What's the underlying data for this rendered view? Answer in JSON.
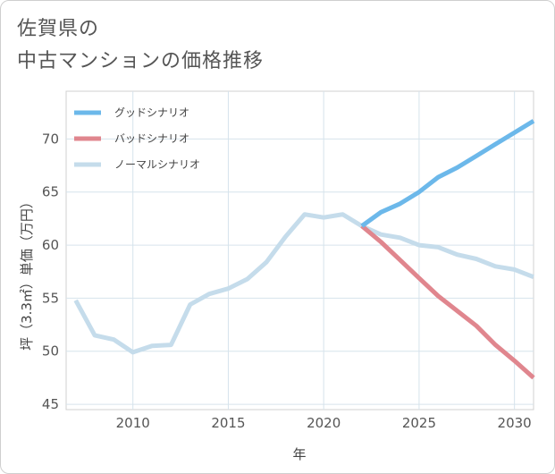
{
  "title_lines": [
    "佐賀県の",
    "中古マンションの価格推移"
  ],
  "chart_data": {
    "type": "line",
    "title": "佐賀県の中古マンションの価格推移",
    "xlabel": "年",
    "ylabel": "坪（3.3㎡）単価（万円）",
    "xlim": [
      2006.5,
      2031
    ],
    "ylim": [
      44.5,
      74.5
    ],
    "x_ticks": [
      2010,
      2015,
      2020,
      2025,
      2030
    ],
    "y_ticks": [
      45,
      50,
      55,
      60,
      65,
      70
    ],
    "legend_position": "top-left",
    "series": [
      {
        "name": "グッドシナリオ",
        "color": "#6cb8ea",
        "x": [
          2022,
          2023,
          2024,
          2025,
          2026,
          2027,
          2028,
          2029,
          2030,
          2031
        ],
        "y": [
          61.8,
          63.1,
          63.9,
          65.0,
          66.4,
          67.3,
          68.4,
          69.5,
          70.6,
          71.7
        ]
      },
      {
        "name": "バッドシナリオ",
        "color": "#e0868e",
        "x": [
          2022,
          2023,
          2024,
          2025,
          2026,
          2027,
          2028,
          2029,
          2030,
          2031
        ],
        "y": [
          61.8,
          60.3,
          58.6,
          56.9,
          55.2,
          53.8,
          52.4,
          50.6,
          49.1,
          47.5
        ]
      },
      {
        "name": "ノーマルシナリオ",
        "color": "#c5dceb",
        "x": [
          2007,
          2008,
          2009,
          2010,
          2011,
          2012,
          2013,
          2014,
          2015,
          2016,
          2017,
          2018,
          2019,
          2020,
          2021,
          2022,
          2023,
          2024,
          2025,
          2026,
          2027,
          2028,
          2029,
          2030,
          2031
        ],
        "y": [
          54.8,
          51.5,
          51.1,
          49.9,
          50.5,
          50.6,
          54.4,
          55.4,
          55.9,
          56.8,
          58.4,
          60.8,
          62.9,
          62.6,
          62.9,
          61.8,
          61.0,
          60.7,
          60.0,
          59.8,
          59.1,
          58.7,
          58.0,
          57.7,
          57.0
        ]
      }
    ]
  }
}
